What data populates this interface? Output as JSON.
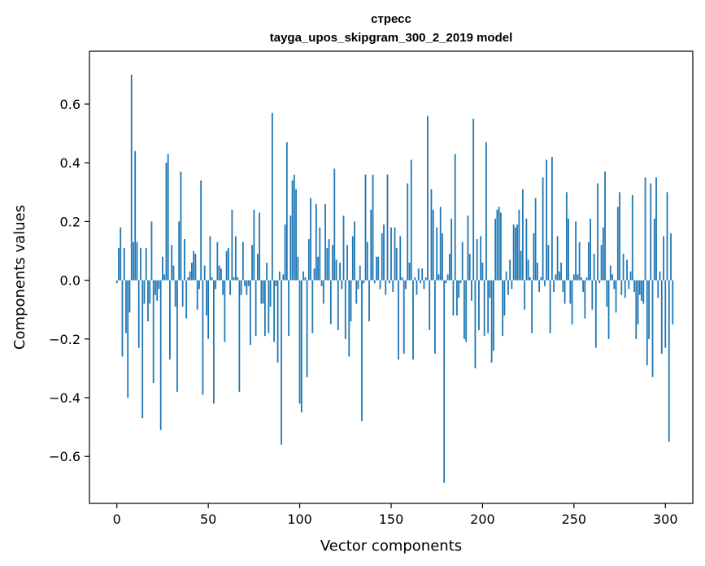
{
  "chart_data": {
    "type": "bar",
    "title": "стресс",
    "subtitle": "tayga_upos_skipgram_300_2_2019 model",
    "xlabel": "Vector components",
    "ylabel": "Components values",
    "xlim": [
      -15,
      315
    ],
    "ylim": [
      -0.76,
      0.78
    ],
    "xticks": [
      0,
      50,
      100,
      150,
      200,
      250,
      300
    ],
    "yticks": [
      -0.6,
      -0.4,
      -0.2,
      0.0,
      0.2,
      0.4,
      0.6
    ],
    "ytick_labels": [
      "−0.6",
      "−0.4",
      "−0.2",
      "0.0",
      "0.2",
      "0.4",
      "0.6"
    ],
    "bar_color": "#1f77b4",
    "grid": false,
    "legend": "none",
    "values": [
      -0.01,
      0.11,
      0.18,
      -0.26,
      0.11,
      -0.18,
      -0.4,
      -0.11,
      0.7,
      0.13,
      0.44,
      0.13,
      -0.23,
      0.11,
      -0.47,
      -0.08,
      0.11,
      -0.14,
      -0.08,
      0.2,
      -0.35,
      -0.05,
      -0.07,
      -0.03,
      -0.51,
      0.08,
      0.02,
      0.4,
      0.43,
      -0.27,
      0.12,
      0.05,
      -0.09,
      -0.38,
      0.2,
      0.37,
      -0.09,
      0.14,
      -0.13,
      0.01,
      0.03,
      0.06,
      0.1,
      0.09,
      -0.1,
      -0.03,
      0.34,
      -0.39,
      0.05,
      -0.12,
      -0.2,
      0.15,
      0.01,
      -0.42,
      -0.03,
      0.13,
      0.05,
      0.04,
      -0.05,
      -0.21,
      0.1,
      0.11,
      -0.05,
      0.24,
      0.01,
      0.15,
      0.01,
      -0.38,
      -0.05,
      0.13,
      -0.02,
      -0.05,
      -0.02,
      -0.22,
      0.12,
      0.24,
      -0.19,
      0.09,
      0.23,
      -0.08,
      -0.08,
      -0.19,
      0.06,
      -0.18,
      -0.09,
      0.57,
      -0.21,
      -0.02,
      -0.28,
      0.03,
      -0.56,
      0.02,
      0.19,
      0.47,
      -0.19,
      0.22,
      0.34,
      0.36,
      0.31,
      0.08,
      -0.42,
      -0.45,
      0.03,
      0.01,
      -0.33,
      0.14,
      0.28,
      -0.18,
      0.04,
      0.26,
      0.08,
      0.18,
      -0.02,
      -0.08,
      0.26,
      0.11,
      0.14,
      -0.15,
      0.12,
      0.38,
      0.07,
      -0.17,
      0.06,
      -0.03,
      0.22,
      -0.2,
      0.12,
      -0.26,
      -0.14,
      0.15,
      0.2,
      -0.08,
      -0.03,
      0.05,
      -0.48,
      -0.01,
      0.36,
      0.13,
      -0.14,
      0.24,
      0.36,
      -0.01,
      0.08,
      0.08,
      -0.03,
      0.16,
      0.19,
      -0.05,
      0.36,
      -0.01,
      0.18,
      -0.04,
      0.18,
      0.11,
      -0.27,
      0.15,
      0.01,
      -0.25,
      -0.03,
      0.33,
      0.06,
      0.41,
      -0.27,
      0.01,
      -0.05,
      0.04,
      -0.01,
      0.04,
      -0.03,
      0.01,
      0.56,
      -0.17,
      0.31,
      0.24,
      -0.25,
      0.18,
      0.02,
      0.25,
      0.16,
      -0.69,
      -0.01,
      0.02,
      0.09,
      0.21,
      -0.12,
      0.43,
      -0.12,
      -0.06,
      -0.01,
      0.13,
      -0.2,
      -0.21,
      0.22,
      0.09,
      -0.07,
      0.55,
      -0.3,
      0.14,
      -0.17,
      0.15,
      0.06,
      -0.19,
      0.47,
      -0.18,
      -0.06,
      -0.28,
      -0.24,
      0.21,
      0.24,
      0.25,
      0.23,
      -0.19,
      -0.12,
      0.03,
      -0.05,
      0.07,
      -0.03,
      0.19,
      0.18,
      0.19,
      0.24,
      0.1,
      0.31,
      -0.1,
      0.21,
      0.07,
      0.01,
      -0.18,
      0.16,
      0.28,
      0.06,
      -0.04,
      0.01,
      0.35,
      -0.02,
      0.41,
      0.12,
      -0.18,
      0.42,
      -0.04,
      0.02,
      0.15,
      0.03,
      0.06,
      -0.04,
      -0.08,
      0.3,
      0.21,
      -0.08,
      -0.15,
      0.02,
      0.2,
      0.02,
      0.13,
      0.01,
      -0.04,
      -0.13,
      0.01,
      0.13,
      0.21,
      -0.1,
      0.09,
      -0.23,
      0.33,
      -0.01,
      0.12,
      0.18,
      0.37,
      -0.09,
      -0.2,
      0.05,
      0.02,
      -0.03,
      -0.11,
      0.25,
      0.3,
      -0.05,
      0.09,
      -0.06,
      0.07,
      -0.03,
      0.03,
      0.29,
      -0.04,
      -0.2,
      -0.15,
      -0.05,
      -0.07,
      -0.08,
      0.35,
      -0.29,
      -0.2,
      0.33,
      -0.33,
      0.21,
      0.35,
      -0.06,
      0.03,
      -0.25,
      0.15,
      -0.23,
      0.3,
      -0.55,
      0.16,
      -0.15
    ]
  }
}
